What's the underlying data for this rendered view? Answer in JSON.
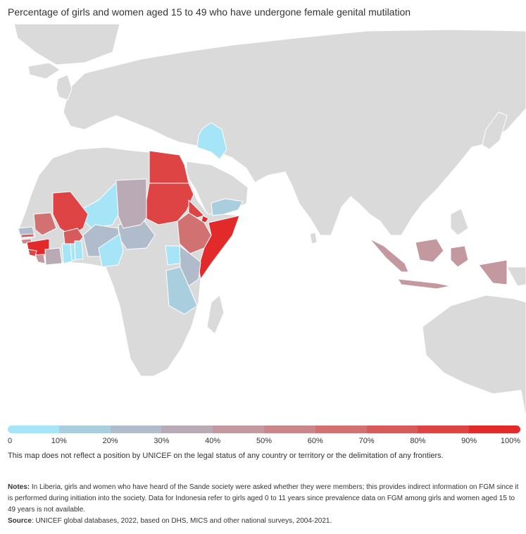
{
  "title": "Percentage of girls and women aged 15 to 49 who have undergone female genital mutilation",
  "legend": {
    "colors": [
      "#a6e4f7",
      "#a9cfdf",
      "#b0bccb",
      "#b9aab5",
      "#c3999f",
      "#cb8689",
      "#d27172",
      "#d85b5c",
      "#de4444",
      "#e32a2a"
    ],
    "tick_labels": [
      "0",
      "10%",
      "20%",
      "30%",
      "40%",
      "50%",
      "60%",
      "70%",
      "80%",
      "90%",
      "100%"
    ]
  },
  "colors": {
    "no_data": "#dadada",
    "border": "#ffffff"
  },
  "countries": [
    {
      "name": "Egypt",
      "value": 87
    },
    {
      "name": "Sudan",
      "value": 87
    },
    {
      "name": "Mali",
      "value": 89
    },
    {
      "name": "Guinea",
      "value": 95
    },
    {
      "name": "Sierra Leone",
      "value": 83
    },
    {
      "name": "Somalia",
      "value": 99
    },
    {
      "name": "Djibouti",
      "value": 90
    },
    {
      "name": "Eritrea",
      "value": 83
    },
    {
      "name": "Ethiopia",
      "value": 65
    },
    {
      "name": "Burkina Faso",
      "value": 76
    },
    {
      "name": "Gambia",
      "value": 73
    },
    {
      "name": "Mauritania",
      "value": 64
    },
    {
      "name": "Indonesia",
      "value": 49
    },
    {
      "name": "Liberia",
      "value": 44
    },
    {
      "name": "Chad",
      "value": 34
    },
    {
      "name": "Guinea-Bissau",
      "value": 52
    },
    {
      "name": "Kenya",
      "value": 21
    },
    {
      "name": "Senegal",
      "value": 25
    },
    {
      "name": "Central African Republic",
      "value": 22
    },
    {
      "name": "Yemen",
      "value": 19
    },
    {
      "name": "Nigeria",
      "value": 20
    },
    {
      "name": "Tanzania",
      "value": 10
    },
    {
      "name": "Côte d'Ivoire",
      "value": 37
    },
    {
      "name": "Iraq",
      "value": 7
    },
    {
      "name": "Niger",
      "value": 2
    },
    {
      "name": "Cameroon",
      "value": 1
    },
    {
      "name": "Uganda",
      "value": 0.3
    },
    {
      "name": "Ghana",
      "value": 2
    },
    {
      "name": "Togo",
      "value": 3
    },
    {
      "name": "Benin",
      "value": 9
    }
  ],
  "disclaimer": "This map does not reflect a position by UNICEF on the legal status of any country or territory or the delimitation of any frontiers.",
  "notes": {
    "label": "Notes:",
    "text": " In Liberia, girls and women who have heard of the Sande society were asked whether they were members; this provides indirect information on FGM since it is performed during initiation into the society. Data for Indonesia refer to girls aged 0 to 11 years since prevalence data on FGM among girls and women aged 15 to 49 years is not available."
  },
  "source": {
    "label": "Source",
    "text": ": UNICEF global databases, 2022, based on DHS, MICS and other national surveys, 2004-2021."
  }
}
